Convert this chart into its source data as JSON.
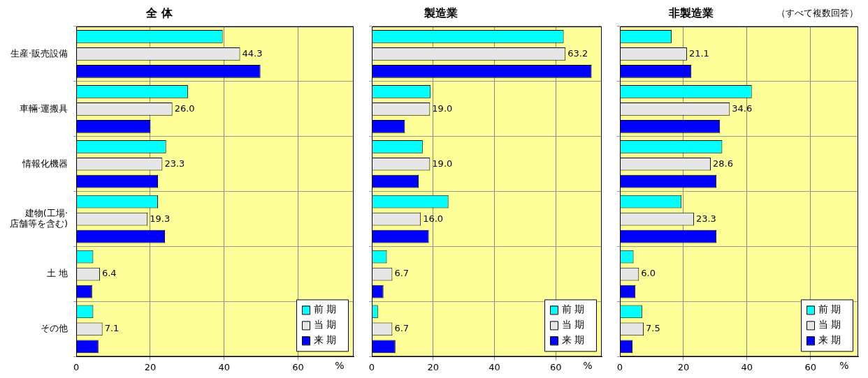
{
  "chart_data": [
    {
      "type": "bar",
      "orientation": "horizontal",
      "title": "全 体",
      "xlabel": "%",
      "categories": [
        "生産·販売設備",
        "車輛·運搬具",
        "情報化機器",
        "建物(工場·店舗等を含む)",
        "土 地",
        "その他"
      ],
      "xlim": [
        0,
        75
      ],
      "xticks": [
        0,
        20,
        40,
        60
      ],
      "grid": true,
      "legend": "bottom right",
      "series": [
        {
          "name": "前 期",
          "color": "#00ffff",
          "values": [
            39.6,
            30.2,
            24.3,
            22.1,
            4.6,
            4.6
          ]
        },
        {
          "name": "当 期",
          "color": "#e6e6e6",
          "values": [
            44.3,
            26.0,
            23.3,
            19.3,
            6.4,
            7.1
          ],
          "value_labels": [
            "44.3",
            "26.0",
            "23.3",
            "19.3",
            "6.4",
            "7.1"
          ]
        },
        {
          "name": "来 期",
          "color": "#0000ff",
          "values": [
            49.8,
            20.1,
            22.1,
            24.0,
            4.3,
            6.0
          ]
        }
      ]
    },
    {
      "type": "bar",
      "orientation": "horizontal",
      "title": "製造業",
      "xlabel": "%",
      "categories": [
        "生産·販売設備",
        "車輛·運搬具",
        "情報化機器",
        "建物(工場·店舗等を含む)",
        "土 地",
        "その他"
      ],
      "xlim": [
        0,
        75
      ],
      "xticks": [
        0,
        20,
        40,
        60
      ],
      "grid": true,
      "legend": "bottom right",
      "tick_labels": "x",
      "series": [
        {
          "name": "前 期",
          "color": "#00ffff",
          "values": [
            62.6,
            19.2,
            16.6,
            25.0,
            4.9,
            2.0
          ]
        },
        {
          "name": "当 期",
          "color": "#e6e6e6",
          "values": [
            63.2,
            19.0,
            19.0,
            16.0,
            6.7,
            6.7
          ],
          "value_labels": [
            "63.2",
            "19.0",
            "19.0",
            "16.0",
            "6.7",
            "6.7"
          ]
        },
        {
          "name": "来 期",
          "color": "#0000ff",
          "values": [
            71.7,
            10.8,
            15.3,
            18.6,
            3.8,
            7.7
          ]
        }
      ]
    },
    {
      "type": "bar",
      "orientation": "horizontal",
      "title": "非製造業",
      "xlabel": "%",
      "annotations": [
        "（すべて複数回答）"
      ],
      "categories": [
        "生産·販売設備",
        "車輛·運搬具",
        "情報化機器",
        "建物(工場·店舗等を含む)",
        "土 地",
        "その他"
      ],
      "xlim": [
        0,
        75
      ],
      "xticks": [
        0,
        20,
        40,
        60
      ],
      "grid": true,
      "legend": "bottom right",
      "tick_labels": "x",
      "series": [
        {
          "name": "前 期",
          "color": "#00ffff",
          "values": [
            16.3,
            41.5,
            32.2,
            19.4,
            4.3,
            7.0
          ]
        },
        {
          "name": "当 期",
          "color": "#e6e6e6",
          "values": [
            21.1,
            34.6,
            28.6,
            23.3,
            6.0,
            7.5
          ],
          "value_labels": [
            "21.1",
            "34.6",
            "28.6",
            "23.3",
            "6.0",
            "7.5"
          ]
        },
        {
          "name": "来 期",
          "color": "#0000ff",
          "values": [
            22.5,
            31.5,
            30.4,
            30.4,
            4.9,
            4.0
          ]
        }
      ]
    }
  ]
}
